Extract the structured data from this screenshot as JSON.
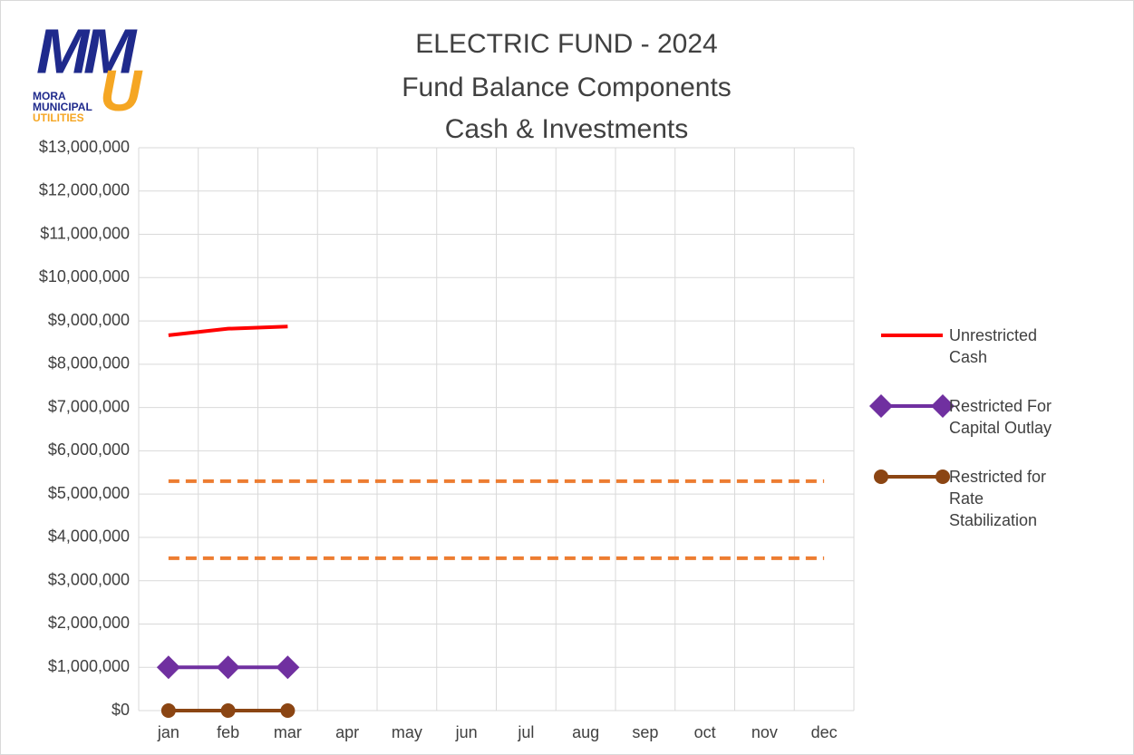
{
  "chart_data": {
    "type": "line",
    "title": [
      "ELECTRIC FUND - 2024",
      "Fund Balance Components",
      "Cash & Investments"
    ],
    "logo": {
      "letters": [
        "M",
        "M",
        "U"
      ],
      "text": [
        "MORA",
        "MUNICIPAL",
        "UTILITIES"
      ]
    },
    "categories": [
      "jan",
      "feb",
      "mar",
      "apr",
      "may",
      "jun",
      "jul",
      "aug",
      "sep",
      "oct",
      "nov",
      "dec"
    ],
    "series": [
      {
        "name": "Unrestricted Cash",
        "color": "#ff0000",
        "marker": "none",
        "values": [
          8670000,
          8820000,
          8870000,
          null,
          null,
          null,
          null,
          null,
          null,
          null,
          null,
          null
        ]
      },
      {
        "name": "Restricted For Capital Outlay",
        "color": "#7030a0",
        "marker": "diamond",
        "values": [
          1000000,
          1000000,
          1000000,
          null,
          null,
          null,
          null,
          null,
          null,
          null,
          null,
          null
        ]
      },
      {
        "name": "Restricted for Rate Stabilization",
        "color": "#8b4513",
        "marker": "circle",
        "values": [
          0,
          0,
          0,
          null,
          null,
          null,
          null,
          null,
          null,
          null,
          null,
          null
        ]
      },
      {
        "color": "#ed7d31",
        "dashed": true,
        "marker": "none",
        "values": [
          5300000,
          5300000,
          5300000,
          5300000,
          5300000,
          5300000,
          5300000,
          5300000,
          5300000,
          5300000,
          5300000,
          5300000
        ]
      },
      {
        "color": "#ed7d31",
        "dashed": true,
        "marker": "none",
        "values": [
          3520000,
          3520000,
          3520000,
          3520000,
          3520000,
          3520000,
          3520000,
          3520000,
          3520000,
          3520000,
          3520000,
          3520000
        ]
      }
    ],
    "ylim": [
      0,
      13000000
    ],
    "yticks": [
      {
        "value": 0,
        "label": "$0"
      },
      {
        "value": 1000000,
        "label": "$1,000,000"
      },
      {
        "value": 2000000,
        "label": "$2,000,000"
      },
      {
        "value": 3000000,
        "label": "$3,000,000"
      },
      {
        "value": 4000000,
        "label": "$4,000,000"
      },
      {
        "value": 5000000,
        "label": "$5,000,000"
      },
      {
        "value": 6000000,
        "label": "$6,000,000"
      },
      {
        "value": 7000000,
        "label": "$7,000,000"
      },
      {
        "value": 8000000,
        "label": "$8,000,000"
      },
      {
        "value": 9000000,
        "label": "$9,000,000"
      },
      {
        "value": 10000000,
        "label": "$10,000,000"
      },
      {
        "value": 11000000,
        "label": "$11,000,000"
      },
      {
        "value": 12000000,
        "label": "$12,000,000"
      },
      {
        "value": 13000000,
        "label": "$13,000,000"
      }
    ],
    "grid": true,
    "legend": "right"
  }
}
